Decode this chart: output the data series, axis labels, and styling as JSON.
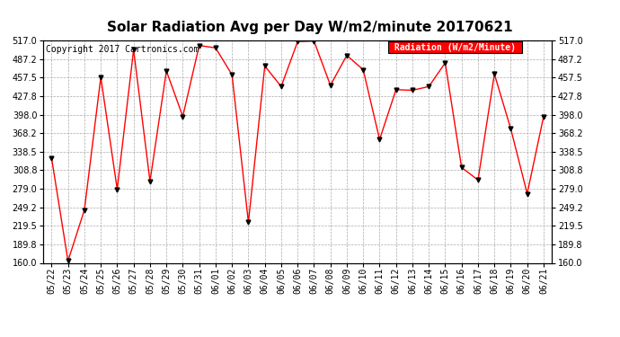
{
  "title": "Solar Radiation Avg per Day W/m2/minute 20170621",
  "copyright": "Copyright 2017 Cartronics.com",
  "legend_label": "Radiation (W/m2/Minute)",
  "dates": [
    "05/22",
    "05/23",
    "05/24",
    "05/25",
    "05/26",
    "05/27",
    "05/28",
    "05/29",
    "05/30",
    "05/31",
    "06/01",
    "06/02",
    "06/03",
    "06/04",
    "06/05",
    "06/06",
    "06/07",
    "06/08",
    "06/09",
    "06/10",
    "06/11",
    "06/12",
    "06/13",
    "06/14",
    "06/15",
    "06/16",
    "06/17",
    "06/18",
    "06/19",
    "06/20",
    "06/21"
  ],
  "values": [
    328,
    163,
    245,
    458,
    278,
    502,
    291,
    468,
    395,
    509,
    505,
    462,
    225,
    476,
    443,
    515,
    516,
    445,
    493,
    470,
    358,
    438,
    437,
    443,
    481,
    313,
    293,
    463,
    375,
    271,
    395
  ],
  "ylim": [
    160.0,
    517.0
  ],
  "yticks": [
    160.0,
    189.8,
    219.5,
    249.2,
    279.0,
    308.8,
    338.5,
    368.2,
    398.0,
    427.8,
    457.5,
    487.2,
    517.0
  ],
  "line_color": "red",
  "marker_color": "black",
  "bg_color": "#ffffff",
  "grid_color": "#aaaaaa",
  "legend_bg": "red",
  "legend_text_color": "white",
  "title_fontsize": 11,
  "copyright_fontsize": 7,
  "tick_fontsize": 7
}
